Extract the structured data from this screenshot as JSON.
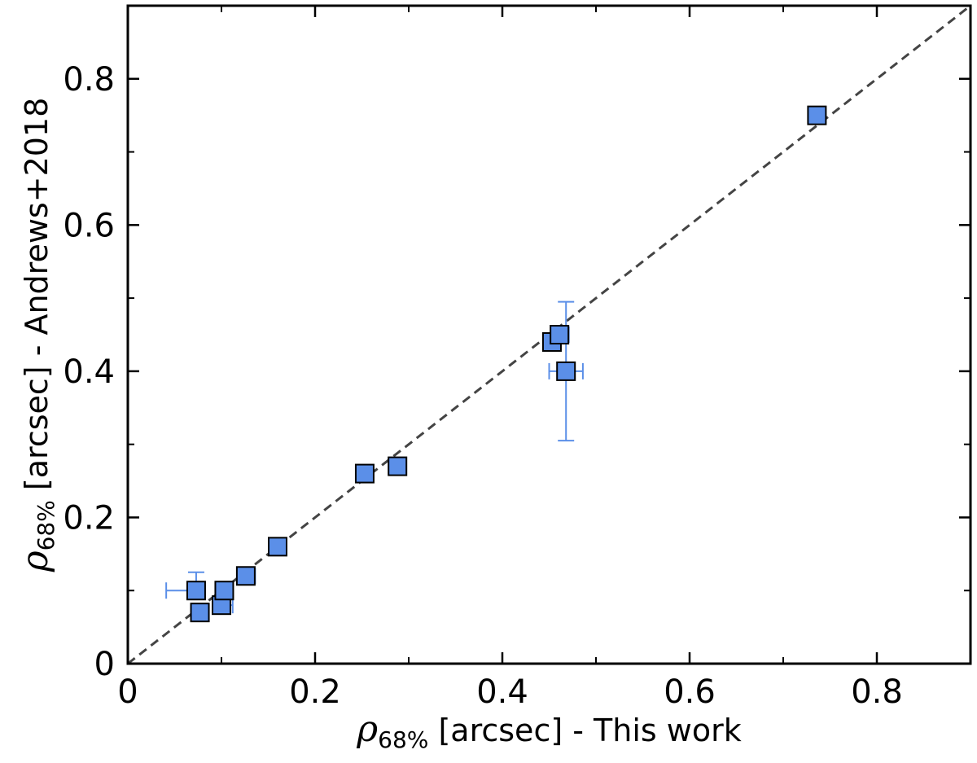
{
  "chart_data": {
    "type": "scatter",
    "title": "",
    "xlabel": {
      "symbol": "ρ",
      "subscript": "68%",
      "text": " [arcsec] - This work"
    },
    "ylabel": {
      "symbol": "ρ",
      "subscript": "68%",
      "text": " [arcsec] - Andrews+2018"
    },
    "xlim": [
      0,
      0.9
    ],
    "ylim": [
      0,
      0.9
    ],
    "x_ticks": [
      0,
      0.2,
      0.4,
      0.6,
      0.8
    ],
    "y_ticks": [
      0,
      0.2,
      0.4,
      0.6,
      0.8
    ],
    "x_tick_labels": [
      "0",
      "0.2",
      "0.4",
      "0.6",
      "0.8"
    ],
    "y_tick_labels": [
      "0",
      "0.2",
      "0.4",
      "0.6",
      "0.8"
    ],
    "grid": false,
    "reference_line": {
      "style": "dashed",
      "from": [
        0,
        0
      ],
      "to": [
        0.9,
        0.9
      ],
      "color": "#444444"
    },
    "marker": {
      "shape": "square",
      "fill": "#5b8fe8",
      "edge": "#000000"
    },
    "errorbar_color": "#5b8fe8",
    "points": [
      {
        "x": 0.073,
        "y": 0.1,
        "xerr": [
          0.032,
          0.0
        ],
        "yerr": [
          0.0,
          0.025
        ]
      },
      {
        "x": 0.077,
        "y": 0.07,
        "xerr": [
          0.0,
          0.0
        ],
        "yerr": [
          0.0,
          0.0
        ]
      },
      {
        "x": 0.1,
        "y": 0.08,
        "xerr": [
          0.0,
          0.012
        ],
        "yerr": [
          0.0,
          0.0
        ]
      },
      {
        "x": 0.103,
        "y": 0.1,
        "xerr": [
          0.0,
          0.0
        ],
        "yerr": [
          0.0,
          0.0
        ]
      },
      {
        "x": 0.126,
        "y": 0.12,
        "xerr": [
          0.0,
          0.01
        ],
        "yerr": [
          0.0,
          0.0
        ]
      },
      {
        "x": 0.16,
        "y": 0.16,
        "xerr": [
          0.0,
          0.0
        ],
        "yerr": [
          0.0,
          0.0
        ]
      },
      {
        "x": 0.253,
        "y": 0.26,
        "xerr": [
          0.0,
          0.0
        ],
        "yerr": [
          0.0,
          0.0
        ]
      },
      {
        "x": 0.288,
        "y": 0.27,
        "xerr": [
          0.0,
          0.0
        ],
        "yerr": [
          0.0,
          0.0
        ]
      },
      {
        "x": 0.453,
        "y": 0.44,
        "xerr": [
          0.0,
          0.0
        ],
        "yerr": [
          0.0,
          0.0
        ]
      },
      {
        "x": 0.461,
        "y": 0.45,
        "xerr": [
          0.0,
          0.01
        ],
        "yerr": [
          0.0,
          0.0
        ]
      },
      {
        "x": 0.468,
        "y": 0.4,
        "xerr": [
          0.018,
          0.018
        ],
        "yerr": [
          0.095,
          0.095
        ]
      },
      {
        "x": 0.736,
        "y": 0.75,
        "xerr": [
          0.0,
          0.0
        ],
        "yerr": [
          0.0,
          0.0
        ]
      }
    ]
  }
}
